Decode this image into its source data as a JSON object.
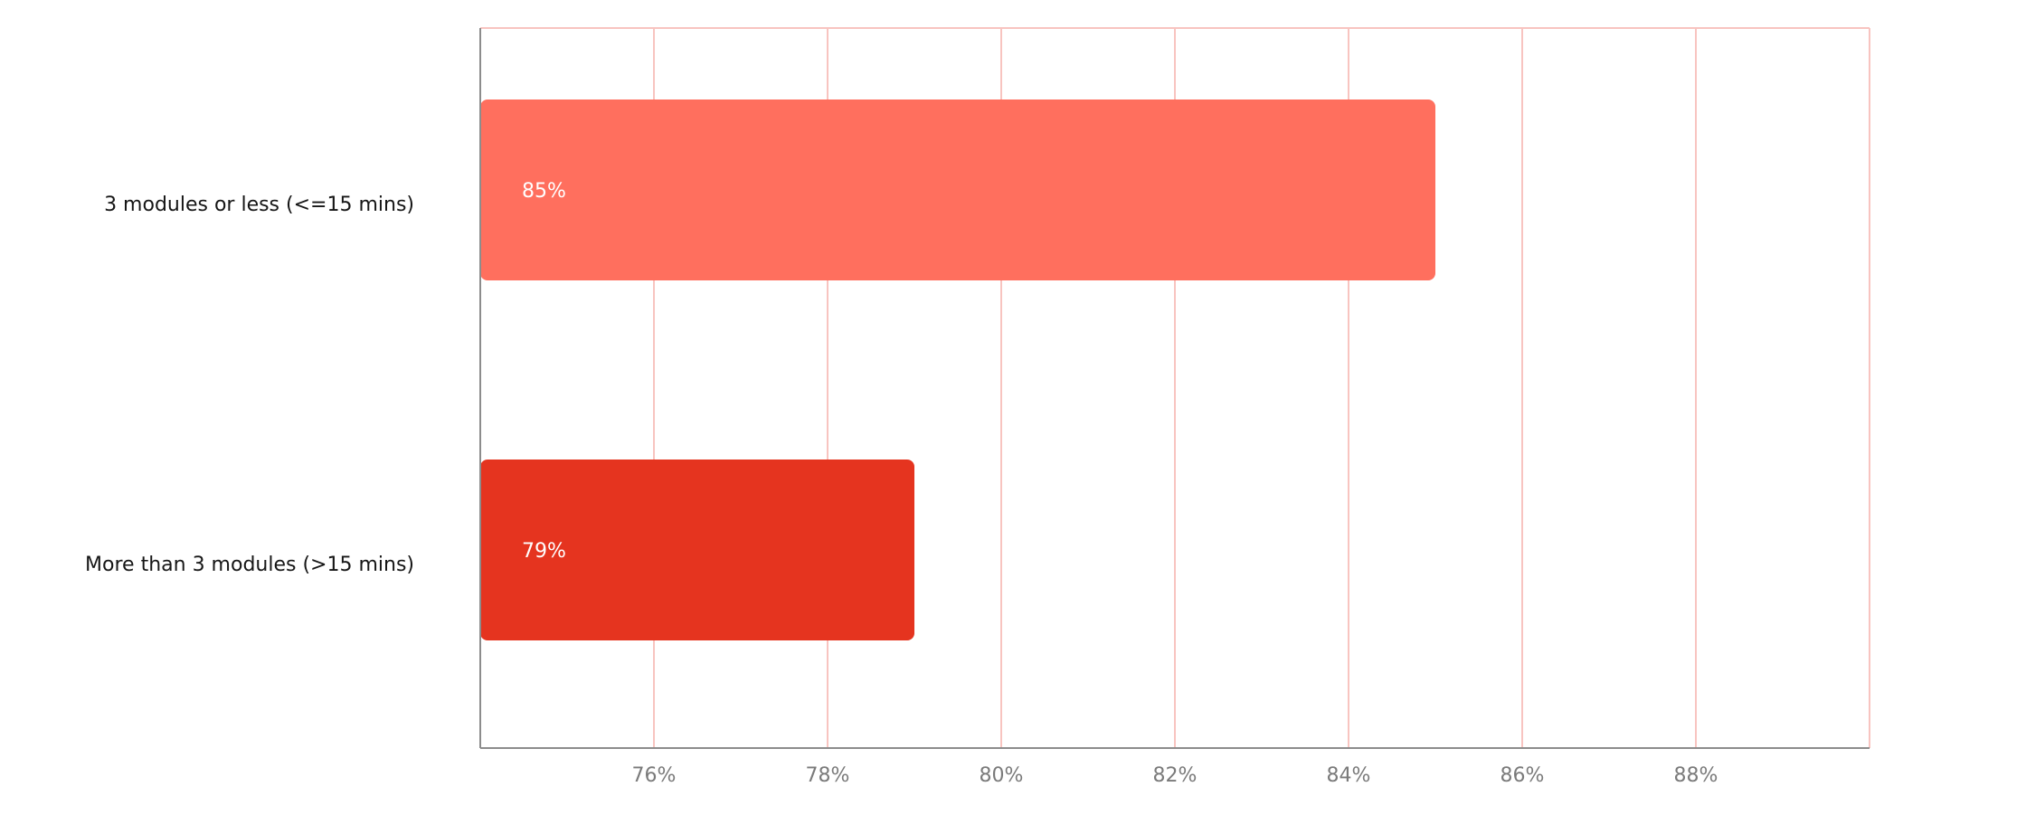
{
  "chart_data": {
    "type": "bar",
    "orientation": "horizontal",
    "categories": [
      "3 modules or less (<=15 mins)",
      "More than 3 modules (>15 mins)"
    ],
    "values": [
      85,
      79
    ],
    "data_labels": [
      "85%",
      "79%"
    ],
    "bar_colors": [
      "#ff6f5e",
      "#e5341f"
    ],
    "xlim": [
      74,
      90
    ],
    "x_ticks": [
      76,
      78,
      80,
      82,
      84,
      86,
      88
    ],
    "x_tick_labels": [
      "76%",
      "78%",
      "80%",
      "82%",
      "84%",
      "86%",
      "88%"
    ],
    "grid": true,
    "grid_color": "#f8c4c0",
    "title": "",
    "xlabel": "",
    "ylabel": ""
  }
}
